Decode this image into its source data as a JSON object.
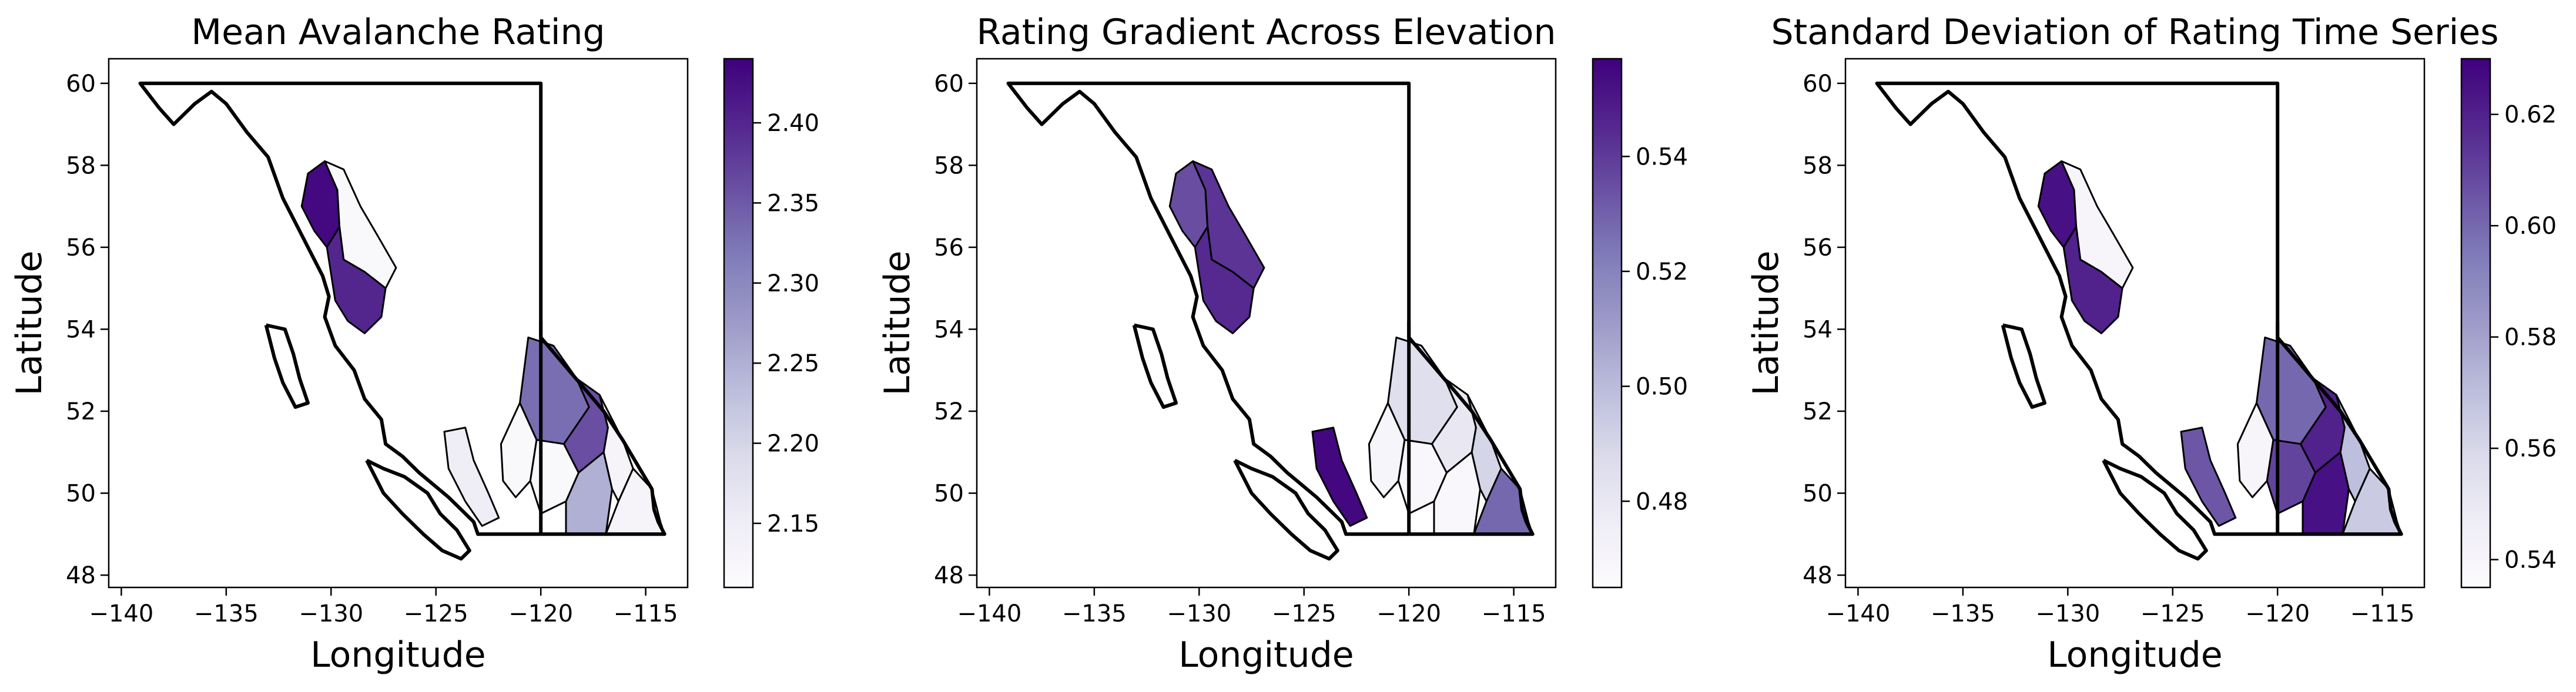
{
  "figure": {
    "panels": [
      {
        "id": "mean",
        "title": "Mean Avalanche Rating",
        "xlabel": "Longitude",
        "ylabel": "Latitude",
        "x_ticks": [
          "−140",
          "−135",
          "−130",
          "−125",
          "−120",
          "−115"
        ],
        "y_ticks": [
          "48",
          "50",
          "52",
          "54",
          "56",
          "58",
          "60"
        ],
        "colorbar": {
          "colormap": "Purples",
          "min": 2.11,
          "max": 2.44,
          "ticks": [
            2.15,
            2.2,
            2.25,
            2.3,
            2.35,
            2.4
          ],
          "tick_labels": [
            "2.15",
            "2.20",
            "2.25",
            "2.30",
            "2.35",
            "2.40"
          ]
        },
        "regions": {
          "north_coast_west": 2.43,
          "north_coast_east": 2.12,
          "coast_central": 2.4,
          "south_coast": 2.15,
          "interior_north": 2.33,
          "interior_mid": 2.36,
          "interior_south": 2.25,
          "kootenay_west": 2.13,
          "kootenay_east": 2.13,
          "southwest_interior": 2.12,
          "okanagan": 2.12
        }
      },
      {
        "id": "gradient",
        "title": "Rating Gradient Across Elevation",
        "xlabel": "Longitude",
        "ylabel": "Latitude",
        "x_ticks": [
          "−140",
          "−135",
          "−130",
          "−125",
          "−120",
          "−115"
        ],
        "y_ticks": [
          "48",
          "50",
          "52",
          "54",
          "56",
          "58",
          "60"
        ],
        "colorbar": {
          "colormap": "Purples",
          "min": 0.465,
          "max": 0.557,
          "ticks": [
            0.48,
            0.5,
            0.52,
            0.54
          ],
          "tick_labels": [
            "0.48",
            "0.50",
            "0.52",
            "0.54"
          ]
        },
        "regions": {
          "north_coast_west": 0.535,
          "north_coast_east": 0.542,
          "coast_central": 0.545,
          "south_coast": 0.555,
          "interior_north": 0.485,
          "interior_mid": 0.48,
          "interior_south": 0.468,
          "kootenay_west": 0.49,
          "kootenay_east": 0.528,
          "southwest_interior": 0.47,
          "okanagan": 0.468
        }
      },
      {
        "id": "std",
        "title": "Standard Deviation of Rating Time Series",
        "xlabel": "Longitude",
        "ylabel": "Latitude",
        "x_ticks": [
          "−140",
          "−135",
          "−130",
          "−125",
          "−120",
          "−115"
        ],
        "y_ticks": [
          "48",
          "50",
          "52",
          "54",
          "56",
          "58",
          "60"
        ],
        "colorbar": {
          "colormap": "Purples",
          "min": 0.535,
          "max": 0.63,
          "ticks": [
            0.54,
            0.56,
            0.58,
            0.6,
            0.62
          ],
          "tick_labels": [
            "0.54",
            "0.56",
            "0.58",
            "0.60",
            "0.62"
          ]
        },
        "regions": {
          "north_coast_west": 0.625,
          "north_coast_east": 0.54,
          "coast_central": 0.62,
          "south_coast": 0.605,
          "interior_north": 0.6,
          "interior_mid": 0.62,
          "interior_south": 0.625,
          "kootenay_west": 0.57,
          "kootenay_east": 0.565,
          "southwest_interior": 0.54,
          "okanagan": 0.61
        }
      }
    ]
  }
}
